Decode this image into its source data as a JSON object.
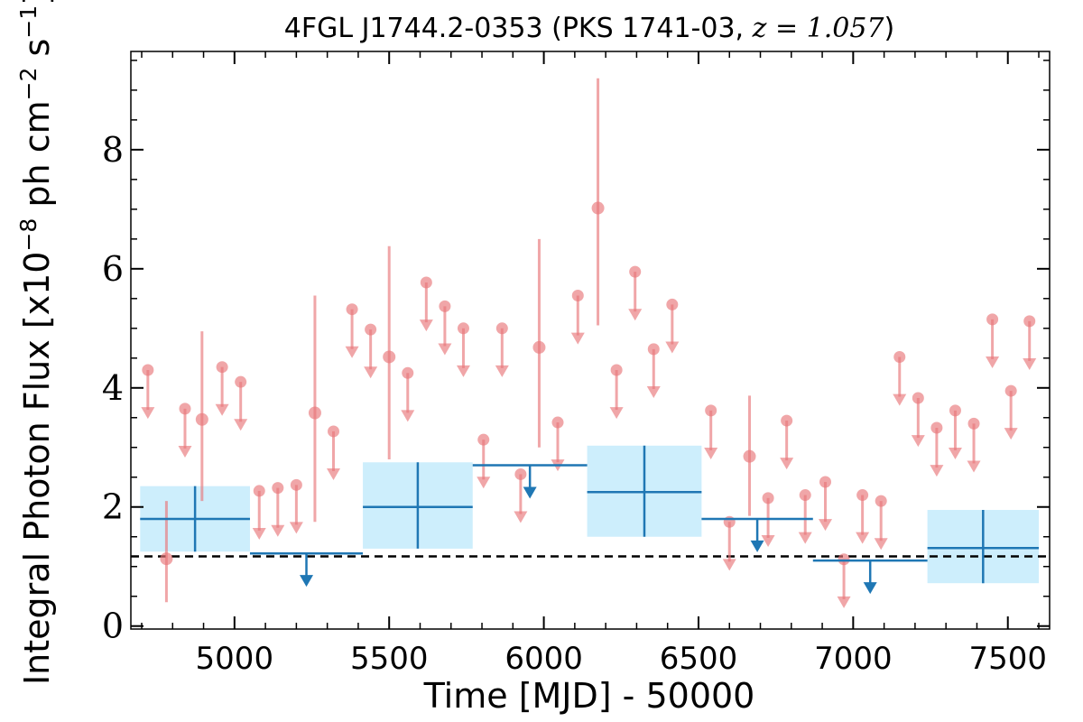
{
  "chart_data": {
    "type": "scatter",
    "title_text": "4FGL J1744.2-0353 (PKS 1741-03, ",
    "title_math": "z = 1.057",
    "title_close": ")",
    "xlabel": "Time [MJD] - 50000",
    "ylabel": "Integral Photon Flux [x10",
    "ylabel_exp1": "−8",
    "ylabel_mid": " ph cm",
    "ylabel_exp2": "−2",
    "ylabel_s": " s",
    "ylabel_exp3": "−1",
    "ylabel_end": "]",
    "xlim": [
      4665,
      7635
    ],
    "ylim": [
      -0.05,
      9.65
    ],
    "xticks": [
      5000,
      5500,
      6000,
      6500,
      7000,
      7500
    ],
    "yticks": [
      0,
      2,
      4,
      6,
      8
    ],
    "reference_level": 1.17,
    "colors": {
      "short_bins": "#e8777a",
      "long_bins": "#1f77b4",
      "long_bin_band": "#cdeefc",
      "reference_line": "#000000"
    },
    "series": [
      {
        "role": "short-bin detections",
        "points": [
          {
            "x": 4780,
            "y": 1.13,
            "lo": 0.4,
            "hi": 2.1
          },
          {
            "x": 4895,
            "y": 3.47,
            "lo": 2.1,
            "hi": 4.95
          },
          {
            "x": 5260,
            "y": 3.58,
            "lo": 1.75,
            "hi": 5.55
          },
          {
            "x": 5500,
            "y": 4.52,
            "lo": 2.8,
            "hi": 6.38
          },
          {
            "x": 5985,
            "y": 4.68,
            "lo": 3.0,
            "hi": 6.5
          },
          {
            "x": 6175,
            "y": 7.02,
            "lo": 5.05,
            "hi": 9.2
          },
          {
            "x": 6665,
            "y": 2.85,
            "lo": 1.85,
            "hi": 3.87
          }
        ]
      },
      {
        "role": "short-bin upper limits",
        "points": [
          {
            "x": 4720,
            "y": 4.3
          },
          {
            "x": 4840,
            "y": 3.65
          },
          {
            "x": 4960,
            "y": 4.35
          },
          {
            "x": 5020,
            "y": 4.1
          },
          {
            "x": 5080,
            "y": 2.27
          },
          {
            "x": 5140,
            "y": 2.32
          },
          {
            "x": 5200,
            "y": 2.37
          },
          {
            "x": 5320,
            "y": 3.27
          },
          {
            "x": 5380,
            "y": 5.32
          },
          {
            "x": 5440,
            "y": 4.98
          },
          {
            "x": 5560,
            "y": 4.25
          },
          {
            "x": 5620,
            "y": 5.77
          },
          {
            "x": 5680,
            "y": 5.37
          },
          {
            "x": 5740,
            "y": 5.0
          },
          {
            "x": 5805,
            "y": 3.13
          },
          {
            "x": 5865,
            "y": 5.0
          },
          {
            "x": 5925,
            "y": 2.55
          },
          {
            "x": 6045,
            "y": 3.42
          },
          {
            "x": 6110,
            "y": 5.55
          },
          {
            "x": 6235,
            "y": 4.3
          },
          {
            "x": 6295,
            "y": 5.95
          },
          {
            "x": 6355,
            "y": 4.65
          },
          {
            "x": 6415,
            "y": 5.4
          },
          {
            "x": 6540,
            "y": 3.62
          },
          {
            "x": 6600,
            "y": 1.75
          },
          {
            "x": 6725,
            "y": 2.15
          },
          {
            "x": 6785,
            "y": 3.45
          },
          {
            "x": 6845,
            "y": 2.2
          },
          {
            "x": 6910,
            "y": 2.42
          },
          {
            "x": 6970,
            "y": 1.12
          },
          {
            "x": 7030,
            "y": 2.2
          },
          {
            "x": 7090,
            "y": 2.1
          },
          {
            "x": 7150,
            "y": 4.52
          },
          {
            "x": 7210,
            "y": 3.83
          },
          {
            "x": 7270,
            "y": 3.33
          },
          {
            "x": 7330,
            "y": 3.62
          },
          {
            "x": 7390,
            "y": 3.4
          },
          {
            "x": 7450,
            "y": 5.15
          },
          {
            "x": 7510,
            "y": 3.95
          },
          {
            "x": 7570,
            "y": 5.12
          }
        ]
      },
      {
        "role": "long-bin detections",
        "bins": [
          {
            "x0": 4695,
            "x1": 5050,
            "y": 1.8,
            "lo": 1.25,
            "hi": 2.35
          },
          {
            "x0": 5415,
            "x1": 5770,
            "y": 2.0,
            "lo": 1.3,
            "hi": 2.75
          },
          {
            "x0": 6140,
            "x1": 6510,
            "y": 2.25,
            "lo": 1.5,
            "hi": 3.03
          },
          {
            "x0": 7240,
            "x1": 7600,
            "y": 1.31,
            "lo": 0.72,
            "hi": 1.95
          }
        ]
      },
      {
        "role": "long-bin upper limits",
        "bins": [
          {
            "x0": 5050,
            "x1": 5415,
            "y": 1.22
          },
          {
            "x0": 5770,
            "x1": 6140,
            "y": 2.7
          },
          {
            "x0": 6510,
            "x1": 6870,
            "y": 1.8
          },
          {
            "x0": 6870,
            "x1": 7240,
            "y": 1.1
          }
        ]
      }
    ]
  }
}
